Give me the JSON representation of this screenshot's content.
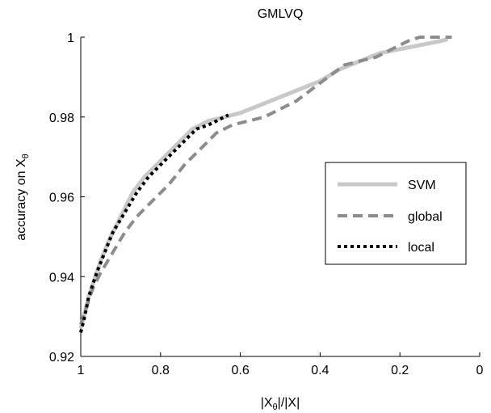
{
  "chart_data": {
    "type": "line",
    "title": "GMLVQ",
    "xlabel": {
      "main": "|X",
      "sub": "θ",
      "rest": "|/|X|"
    },
    "ylabel": {
      "main": "accuracy on X",
      "sub": "θ"
    },
    "xlim": [
      1,
      0
    ],
    "ylim": [
      0.92,
      1.0
    ],
    "x_reversed": true,
    "xticks": [
      1,
      0.8,
      0.6,
      0.4,
      0.2,
      0
    ],
    "xtick_labels": [
      "1",
      "0.8",
      "0.6",
      "0.4",
      "0.2",
      "0"
    ],
    "yticks": [
      0.92,
      0.94,
      0.96,
      0.98,
      1.0
    ],
    "ytick_labels": [
      "0.92",
      "0.94",
      "0.96",
      "0.98",
      "1"
    ],
    "grid": false,
    "legend_position": "right-middle",
    "series": [
      {
        "name": "SVM",
        "style": "solid",
        "color": "#c8c8c8",
        "x": [
          1.0,
          0.99,
          0.98,
          0.97,
          0.95,
          0.93,
          0.9,
          0.87,
          0.84,
          0.8,
          0.76,
          0.72,
          0.68,
          0.64,
          0.6,
          0.55,
          0.5,
          0.45,
          0.4,
          0.35,
          0.3,
          0.25,
          0.2,
          0.15,
          0.1,
          0.08
        ],
        "y": [
          0.927,
          0.931,
          0.935,
          0.938,
          0.944,
          0.949,
          0.955,
          0.961,
          0.965,
          0.969,
          0.973,
          0.977,
          0.979,
          0.98,
          0.981,
          0.983,
          0.985,
          0.987,
          0.989,
          0.992,
          0.994,
          0.996,
          0.997,
          0.998,
          0.999,
          0.9995
        ]
      },
      {
        "name": "global",
        "style": "dashed",
        "color": "#8c8c8c",
        "x": [
          1.0,
          0.99,
          0.98,
          0.97,
          0.95,
          0.92,
          0.89,
          0.86,
          0.82,
          0.78,
          0.74,
          0.7,
          0.66,
          0.62,
          0.58,
          0.54,
          0.5,
          0.46,
          0.42,
          0.38,
          0.34,
          0.3,
          0.26,
          0.22,
          0.18,
          0.15,
          0.12,
          0.09,
          0.07
        ],
        "y": [
          0.928,
          0.931,
          0.934,
          0.937,
          0.941,
          0.946,
          0.951,
          0.955,
          0.959,
          0.963,
          0.968,
          0.972,
          0.976,
          0.978,
          0.979,
          0.98,
          0.982,
          0.984,
          0.987,
          0.99,
          0.993,
          0.994,
          0.995,
          0.997,
          0.999,
          1.0,
          1.0,
          1.0,
          1.0
        ]
      },
      {
        "name": "local",
        "style": "dotted",
        "color": "#000000",
        "x": [
          1.0,
          0.99,
          0.98,
          0.96,
          0.94,
          0.92,
          0.89,
          0.86,
          0.83,
          0.8,
          0.77,
          0.74,
          0.71,
          0.68,
          0.66,
          0.64,
          0.63
        ],
        "y": [
          0.926,
          0.93,
          0.935,
          0.941,
          0.946,
          0.951,
          0.956,
          0.961,
          0.965,
          0.968,
          0.971,
          0.974,
          0.977,
          0.978,
          0.979,
          0.98,
          0.9805
        ]
      }
    ]
  }
}
